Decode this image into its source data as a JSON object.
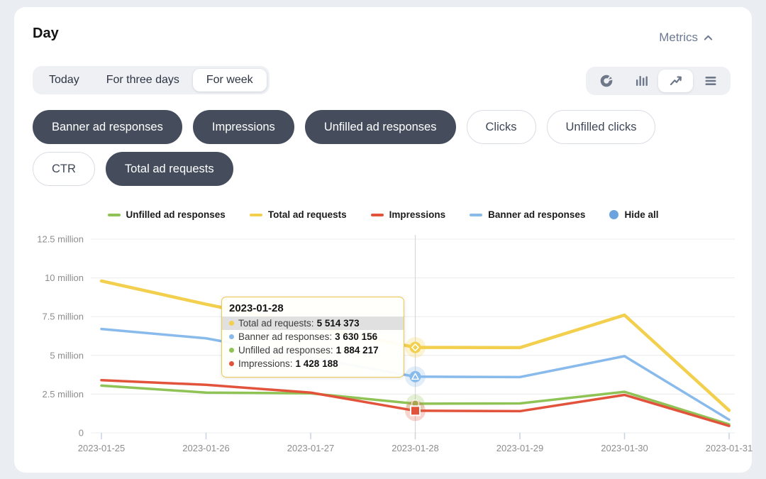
{
  "page": {
    "title": "Day",
    "metrics_toggle": "Metrics"
  },
  "time_range_tabs": [
    {
      "label": "Today",
      "selected": false
    },
    {
      "label": "For three days",
      "selected": false
    },
    {
      "label": "For week",
      "selected": true
    }
  ],
  "chart_type_switcher": [
    {
      "icon": "donut-chart",
      "selected": false
    },
    {
      "icon": "bar-chart",
      "selected": false
    },
    {
      "icon": "line-chart",
      "selected": true
    },
    {
      "icon": "menu",
      "selected": false
    }
  ],
  "metric_filters": {
    "rows": [
      [
        {
          "label": "Banner ad responses",
          "active": true
        },
        {
          "label": "Impressions",
          "active": true
        },
        {
          "label": "Unfilled ad responses",
          "active": true
        },
        {
          "label": "Clicks",
          "active": false
        },
        {
          "label": "Unfilled clicks",
          "active": false
        }
      ],
      [
        {
          "label": "CTR",
          "active": false
        },
        {
          "label": "Total ad requests",
          "active": true
        }
      ]
    ]
  },
  "legend": [
    {
      "label": "Unfilled ad responses",
      "color": "#90c355",
      "type": "line"
    },
    {
      "label": "Total ad requests",
      "color": "#f3cf4e",
      "type": "line"
    },
    {
      "label": "Impressions",
      "color": "#e2533c",
      "type": "line"
    },
    {
      "label": "Banner ad responses",
      "color": "#88baec",
      "type": "line"
    },
    {
      "label": "Hide all",
      "color": "#6ba3de",
      "type": "circle"
    }
  ],
  "tooltip": {
    "date": "2023-01-28",
    "rows": [
      {
        "label": "Total ad requests",
        "value": "5 514 373",
        "color": "#f3cf4e",
        "highlighted": true
      },
      {
        "label": "Banner ad responses",
        "value": "3 630 156",
        "color": "#88baec",
        "highlighted": false
      },
      {
        "label": "Unfilled ad responses",
        "value": "1 884 217",
        "color": "#90c355",
        "highlighted": false
      },
      {
        "label": "Impressions",
        "value": "1 428 188",
        "color": "#e2533c",
        "highlighted": false
      }
    ]
  },
  "chart_data": {
    "type": "line",
    "x": [
      "2023-01-25",
      "2023-01-26",
      "2023-01-27",
      "2023-01-28",
      "2023-01-29",
      "2023-01-30",
      "2023-01-31"
    ],
    "y_ticks": [
      {
        "label": "0",
        "value": 0
      },
      {
        "label": "2.5 million",
        "value": 2500000
      },
      {
        "label": "5 million",
        "value": 5000000
      },
      {
        "label": "7.5 million",
        "value": 7500000
      },
      {
        "label": "10 million",
        "value": 10000000
      },
      {
        "label": "12.5 million",
        "value": 12500000
      }
    ],
    "ylim": [
      0,
      12500000
    ],
    "grid": true,
    "legend_position": "top",
    "hover_index": 3,
    "series": [
      {
        "name": "Unfilled ad responses",
        "color": "#90c355",
        "symbol": "circle",
        "values": [
          3050000,
          2600000,
          2550000,
          1884217,
          1900000,
          2650000,
          550000
        ]
      },
      {
        "name": "Impressions",
        "color": "#e2533c",
        "symbol": "square",
        "values": [
          3400000,
          3100000,
          2600000,
          1428188,
          1400000,
          2450000,
          450000
        ]
      },
      {
        "name": "Banner ad responses",
        "color": "#88baec",
        "symbol": "triangle",
        "values": [
          6700000,
          6100000,
          4850000,
          3630156,
          3600000,
          4950000,
          850000
        ]
      },
      {
        "name": "Total ad requests",
        "color": "#f3cf4e",
        "symbol": "diamond",
        "values": [
          9800000,
          8300000,
          6900000,
          5514373,
          5500000,
          7600000,
          1450000
        ]
      }
    ]
  }
}
